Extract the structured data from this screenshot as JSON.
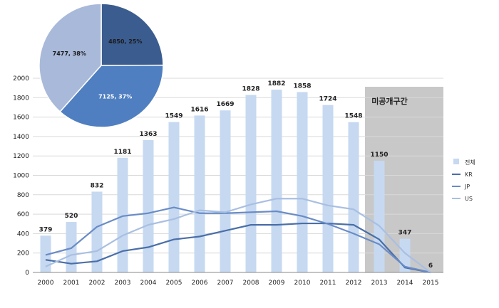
{
  "chart_data": [
    {
      "type": "bar",
      "categories": [
        "2000",
        "2001",
        "2002",
        "2003",
        "2004",
        "2005",
        "2006",
        "2007",
        "2008",
        "2009",
        "2010",
        "2011",
        "2012",
        "2013",
        "2014",
        "2015"
      ],
      "ylim": [
        0,
        2000
      ],
      "yticks": [
        0,
        200,
        400,
        600,
        800,
        1000,
        1200,
        1400,
        1600,
        1800,
        2000
      ],
      "grid": true,
      "legend_position": "right",
      "shaded_region": {
        "from": "2013",
        "to": "2015",
        "label": "미공개구간",
        "color": "#c8c8c8"
      },
      "series": [
        {
          "name": "전체",
          "kind": "bar",
          "color": "#c6d9f1",
          "values": [
            379,
            520,
            832,
            1181,
            1363,
            1549,
            1616,
            1669,
            1828,
            1882,
            1858,
            1724,
            1548,
            1150,
            347,
            6
          ]
        },
        {
          "name": "KR",
          "kind": "line",
          "color": "#4a6fa8",
          "values": [
            130,
            90,
            115,
            220,
            260,
            340,
            370,
            430,
            490,
            490,
            505,
            505,
            490,
            340,
            50,
            0
          ]
        },
        {
          "name": "JP",
          "kind": "line",
          "color": "#6a8cc6",
          "values": [
            180,
            250,
            470,
            580,
            610,
            670,
            610,
            610,
            620,
            630,
            580,
            500,
            400,
            290,
            60,
            0
          ]
        },
        {
          "name": "US",
          "kind": "line",
          "color": "#a9bfe2",
          "values": [
            60,
            180,
            220,
            380,
            490,
            550,
            640,
            620,
            700,
            760,
            760,
            690,
            650,
            480,
            200,
            0
          ]
        }
      ],
      "data_labels": [
        "379",
        "520",
        "832",
        "1181",
        "1363",
        "1549",
        "1616",
        "1669",
        "1828",
        "1882",
        "1858",
        "1724",
        "1548",
        "1150",
        "347",
        "6"
      ]
    },
    {
      "type": "pie",
      "slices": [
        {
          "label": "4850, 25%",
          "value": 4850,
          "color": "#3b5c8f",
          "text_color": "#1a1a1a"
        },
        {
          "label": "7125, 37%",
          "value": 7125,
          "color": "#4f7fc0",
          "text_color": "#ffffff"
        },
        {
          "label": "7477, 38%",
          "value": 7477,
          "color": "#a9b9d9",
          "text_color": "#1a1a1a"
        }
      ]
    }
  ]
}
